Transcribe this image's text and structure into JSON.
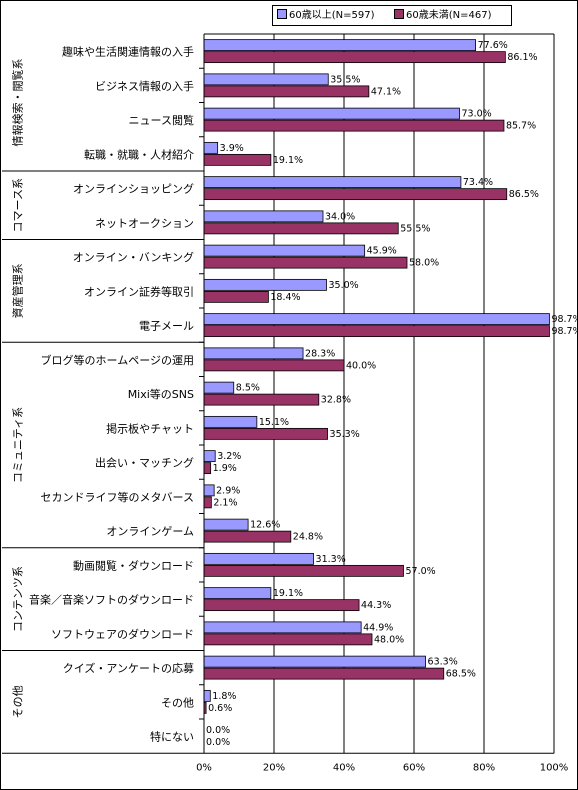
{
  "chart_data": {
    "type": "bar",
    "orientation": "horizontal",
    "categories": [
      "趣味や生活関連情報の入手",
      "ビジネス情報の入手",
      "ニュース閲覧",
      "転職・就職・人材紹介",
      "オンラインショッピング",
      "ネットオークション",
      "オンライン・バンキング",
      "オンライン証券等取引",
      "電子メール",
      "ブログ等のホームページの運用",
      "Mixi等のSNS",
      "掲示板やチャット",
      "出会い・マッチング",
      "セカンドライフ等のメタバース",
      "オンラインゲーム",
      "動画閲覧・ダウンロード",
      "音楽／音楽ソフトのダウンロード",
      "ソフトウェアのダウンロード",
      "クイズ・アンケートの応募",
      "その他",
      "特にない"
    ],
    "groups": [
      {
        "label": "情報検索・閲覧系",
        "start": 0,
        "end": 3
      },
      {
        "label": "コマース系",
        "start": 4,
        "end": 5
      },
      {
        "label": "資産管理系",
        "start": 6,
        "end": 8
      },
      {
        "label": "コミュニティ系",
        "start": 9,
        "end": 14
      },
      {
        "label": "コンテンツ系",
        "start": 15,
        "end": 17
      },
      {
        "label": "その他",
        "start": 18,
        "end": 20
      }
    ],
    "series": [
      {
        "name": "60歳以上(N=597)",
        "color": "#9999ff",
        "values": [
          77.6,
          35.5,
          73.0,
          3.9,
          73.4,
          34.0,
          45.9,
          35.0,
          98.7,
          28.3,
          8.5,
          15.1,
          3.2,
          2.9,
          12.6,
          31.3,
          19.1,
          44.9,
          63.3,
          1.8,
          0.0
        ]
      },
      {
        "name": "60歳未満(N=467)",
        "color": "#993366",
        "values": [
          86.1,
          47.1,
          85.7,
          19.1,
          86.5,
          55.5,
          58.0,
          18.4,
          98.7,
          40.0,
          32.8,
          35.3,
          1.9,
          2.1,
          24.8,
          57.0,
          44.3,
          48.0,
          68.5,
          0.6,
          0.0
        ]
      }
    ],
    "xlim": [
      0,
      100
    ],
    "xticks": [
      "0%",
      "20%",
      "40%",
      "60%",
      "80%",
      "100%"
    ],
    "value_suffix": "%",
    "grid": true,
    "legend": "top-right",
    "title": "",
    "xlabel": "",
    "ylabel": ""
  }
}
